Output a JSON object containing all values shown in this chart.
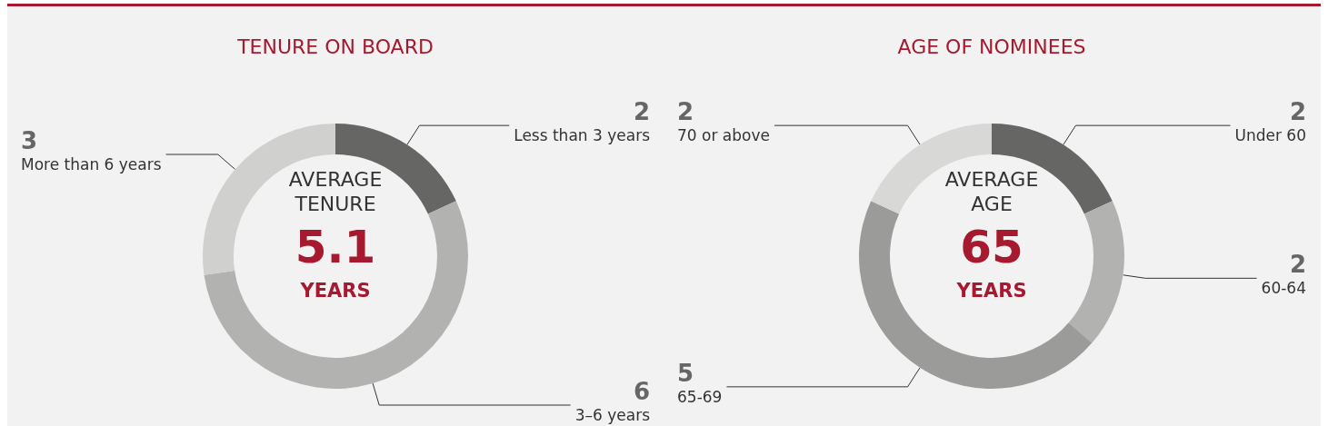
{
  "chart_data": [
    {
      "type": "donut",
      "title": "TENURE ON BOARD",
      "categories": [
        "Less than 3 years",
        "3–6 years",
        "More than 6 years"
      ],
      "values": [
        2,
        6,
        3
      ],
      "colors": [
        "#666664",
        "#b2b2b1",
        "#d0d0cf"
      ],
      "data_labels": true,
      "legend": false,
      "annotations": [
        "AVERAGE",
        "TENURE",
        "5.1",
        "YEARS"
      ]
    },
    {
      "type": "donut",
      "title": "AGE OF NOMINEES",
      "categories": [
        "Under 60",
        "60-64",
        "65-69",
        "70 or above"
      ],
      "values": [
        2,
        2,
        5,
        2
      ],
      "colors": [
        "#666664",
        "#b2b2b1",
        "#9b9b9a",
        "#d8d8d7"
      ],
      "data_labels": true,
      "legend": false,
      "annotations": [
        "AVERAGE",
        "AGE",
        "65",
        "YEARS"
      ]
    }
  ]
}
